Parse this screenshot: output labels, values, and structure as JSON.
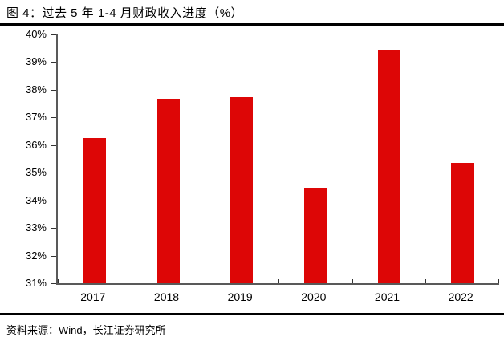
{
  "header": {
    "title": "图 4：过去 5 年 1-4 月财政收入进度（%）"
  },
  "footer": {
    "source": "资料来源：Wind，长江证券研究所"
  },
  "colors": {
    "bar": "#DD0606",
    "axis": "#595959",
    "tick": "#333333",
    "rule": "#000000",
    "text": "#000000",
    "background": "#FFFFFF"
  },
  "chart_data": {
    "type": "bar",
    "title": "过去 5 年 1-4 月财政收入进度（%）",
    "categories": [
      "2017",
      "2018",
      "2019",
      "2020",
      "2021",
      "2022"
    ],
    "values": [
      36.25,
      37.65,
      37.75,
      34.45,
      39.45,
      35.35
    ],
    "xlabel": "",
    "ylabel": "",
    "ylim": [
      31,
      40
    ],
    "ytick_step": 1,
    "ytick_suffix": "%",
    "grid": false,
    "legend": "none",
    "bar_color": "#DD0606"
  }
}
